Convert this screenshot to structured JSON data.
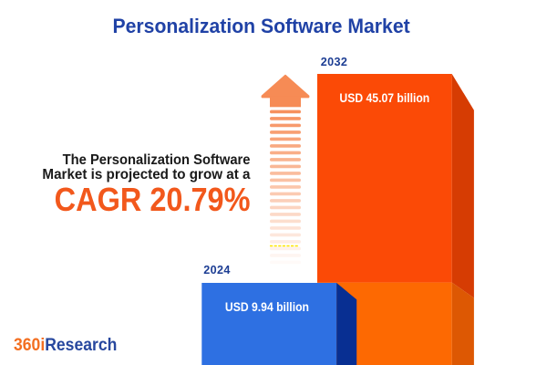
{
  "title": "Personalization Software Market",
  "chart_data": {
    "type": "bar",
    "title": "Personalization Software Market",
    "categories": [
      "2024",
      "2032"
    ],
    "values": [
      9.94,
      45.07
    ],
    "unit": "USD billion",
    "value_labels": [
      "USD 9.94 billion",
      "USD 45.07 billion"
    ],
    "cagr_percent": 20.79,
    "legend": "none",
    "grid": "off"
  },
  "bars": {
    "bar_2024": {
      "year": "2024",
      "value_label": "USD 9.94 billion"
    },
    "bar_2032": {
      "year": "2032",
      "value_label": "USD 45.07 billion"
    }
  },
  "annotation": {
    "line1": "The Personalization Software",
    "line2": "Market is projected to grow at a",
    "cagr_label": "CAGR 20.79%"
  },
  "logo": {
    "prefix": "360i",
    "suffix": "Research"
  },
  "icons": {
    "growth_arrow": "upward-striped-arrow"
  },
  "colors": {
    "title_blue": "#2042A6",
    "year_navy": "#1C3D93",
    "text_dark": "#1A1A1A",
    "cagr_orange": "#F2581C",
    "logo_orange": "#F36F21",
    "logo_blue": "#27479E",
    "bar2032_front_top": "#FB4A06",
    "bar2032_front_bottom": "#FD6902",
    "bar2032_side_top": "#D63C03",
    "bar2032_side_bottom": "#DD5803",
    "bar2024_front": "#2E70E2",
    "bar2024_side": "#082F92",
    "arrow_orange": "#F68B55",
    "dash_yellow": "#FFE600",
    "value_text": "#FFFFFF",
    "background": "#FFFFFF"
  }
}
